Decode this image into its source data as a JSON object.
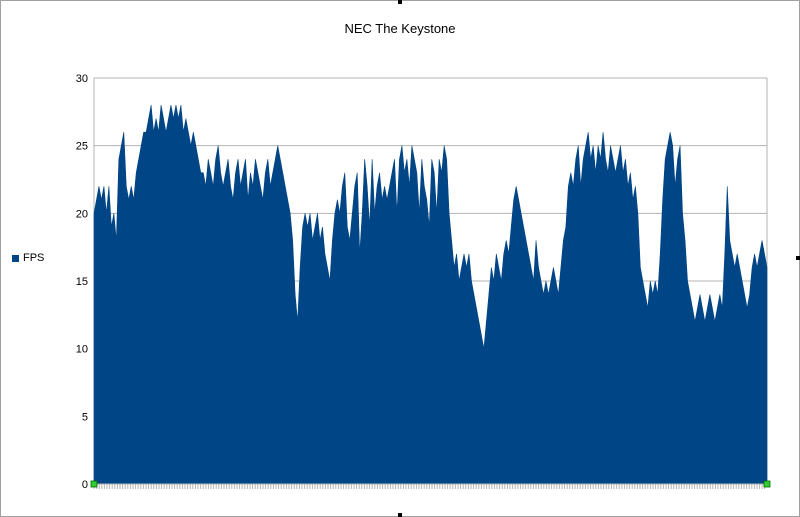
{
  "chart_data": {
    "type": "area",
    "title": "NEC The Keystone",
    "ylabel": "",
    "xlabel": "",
    "ylim": [
      0,
      30
    ],
    "yticks": [
      0,
      5,
      10,
      15,
      20,
      25,
      30
    ],
    "grid": true,
    "legend_position": "left",
    "series": [
      {
        "name": "FPS",
        "color": "#004586",
        "values": [
          20,
          21,
          22,
          21,
          22,
          20,
          22,
          19,
          20,
          18,
          24,
          25,
          26,
          22,
          21,
          22,
          21,
          23,
          24,
          25,
          26,
          26,
          27,
          28,
          26,
          27,
          26,
          28,
          27,
          26,
          27,
          28,
          27,
          28,
          27,
          28,
          26,
          27,
          26,
          25,
          26,
          25,
          24,
          23,
          23,
          22,
          24,
          23,
          22,
          24,
          25,
          23,
          22,
          23,
          24,
          22,
          21,
          23,
          24,
          22,
          23,
          24,
          21,
          23,
          22,
          24,
          23,
          22,
          21,
          23,
          24,
          22,
          23,
          24,
          25,
          24,
          23,
          22,
          21,
          20,
          18,
          14,
          12,
          16,
          19,
          20,
          19,
          20,
          18,
          19,
          20,
          18,
          19,
          17,
          16,
          15,
          18,
          20,
          21,
          20,
          22,
          23,
          19,
          18,
          20,
          22,
          23,
          17,
          20,
          24,
          22,
          19,
          24,
          20,
          22,
          23,
          21,
          22,
          21,
          22,
          23,
          24,
          20,
          24,
          25,
          23,
          24,
          22,
          25,
          24,
          23,
          20,
          24,
          22,
          21,
          19,
          24,
          23,
          20,
          24,
          23,
          25,
          24,
          20,
          18,
          16,
          17,
          15,
          16,
          17,
          16,
          17,
          15,
          14,
          13,
          12,
          11,
          10,
          12,
          14,
          16,
          15,
          17,
          16,
          15,
          17,
          18,
          17,
          19,
          21,
          22,
          21,
          20,
          19,
          18,
          17,
          16,
          15,
          18,
          16,
          15,
          14,
          15,
          14,
          15,
          16,
          15,
          14,
          16,
          18,
          19,
          22,
          23,
          22,
          24,
          25,
          22,
          24,
          25,
          26,
          24,
          25,
          23,
          25,
          24,
          26,
          24,
          23,
          25,
          24,
          23,
          24,
          25,
          23,
          24,
          22,
          23,
          21,
          22,
          20,
          16,
          15,
          14,
          13,
          15,
          14,
          15,
          14,
          17,
          21,
          24,
          25,
          26,
          25,
          22,
          24,
          25,
          20,
          18,
          15,
          14,
          13,
          12,
          13,
          14,
          13,
          12,
          13,
          14,
          13,
          12,
          13,
          14,
          13,
          17,
          22,
          18,
          17,
          16,
          17,
          16,
          15,
          14,
          13,
          14,
          16,
          17,
          16,
          17,
          18,
          17,
          16
        ]
      }
    ]
  }
}
